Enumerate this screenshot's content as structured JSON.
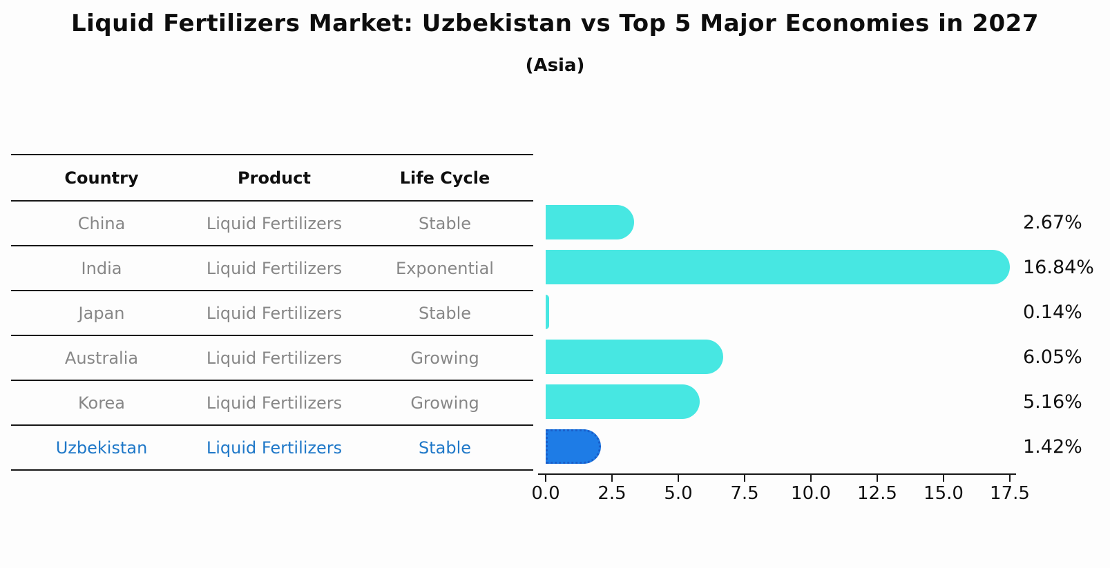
{
  "header": {
    "title": "Liquid Fertilizers Market: Uzbekistan vs Top 5 Major Economies in 2027",
    "subtitle": "(Asia)"
  },
  "table": {
    "columns": [
      "Country",
      "Product",
      "Life Cycle"
    ],
    "rows": [
      {
        "country": "China",
        "product": "Liquid Fertilizers",
        "life_cycle": "Stable",
        "highlight": false
      },
      {
        "country": "India",
        "product": "Liquid Fertilizers",
        "life_cycle": "Exponential",
        "highlight": false
      },
      {
        "country": "Japan",
        "product": "Liquid Fertilizers",
        "life_cycle": "Stable",
        "highlight": false
      },
      {
        "country": "Australia",
        "product": "Liquid Fertilizers",
        "life_cycle": "Growing",
        "highlight": false
      },
      {
        "country": "Korea",
        "product": "Liquid Fertilizers",
        "life_cycle": "Growing",
        "highlight": false
      },
      {
        "country": "Uzbekistan",
        "product": "Liquid Fertilizers",
        "life_cycle": "Stable",
        "highlight": true
      }
    ]
  },
  "chart_data": {
    "type": "bar",
    "orientation": "horizontal",
    "title": "Liquid Fertilizers Market: Uzbekistan vs Top 5 Major Economies in 2027",
    "subtitle": "(Asia)",
    "categories": [
      "China",
      "India",
      "Japan",
      "Australia",
      "Korea",
      "Uzbekistan"
    ],
    "values": [
      2.67,
      16.84,
      0.14,
      6.05,
      5.16,
      1.42
    ],
    "value_labels": [
      "2.67%",
      "16.84%",
      "0.14%",
      "6.05%",
      "5.16%",
      "1.42%"
    ],
    "xlabel": "",
    "ylabel": "",
    "xlim": [
      0,
      17.5
    ],
    "x_ticks": [
      "0.0",
      "2.5",
      "5.0",
      "7.5",
      "10.0",
      "12.5",
      "15.0",
      "17.5"
    ],
    "grid": false,
    "legend": false,
    "bar_color": "#47e7e2",
    "highlight_color": "#1e7ce6",
    "highlight_index": 5,
    "highlight_text_color": "#1f78c8"
  }
}
